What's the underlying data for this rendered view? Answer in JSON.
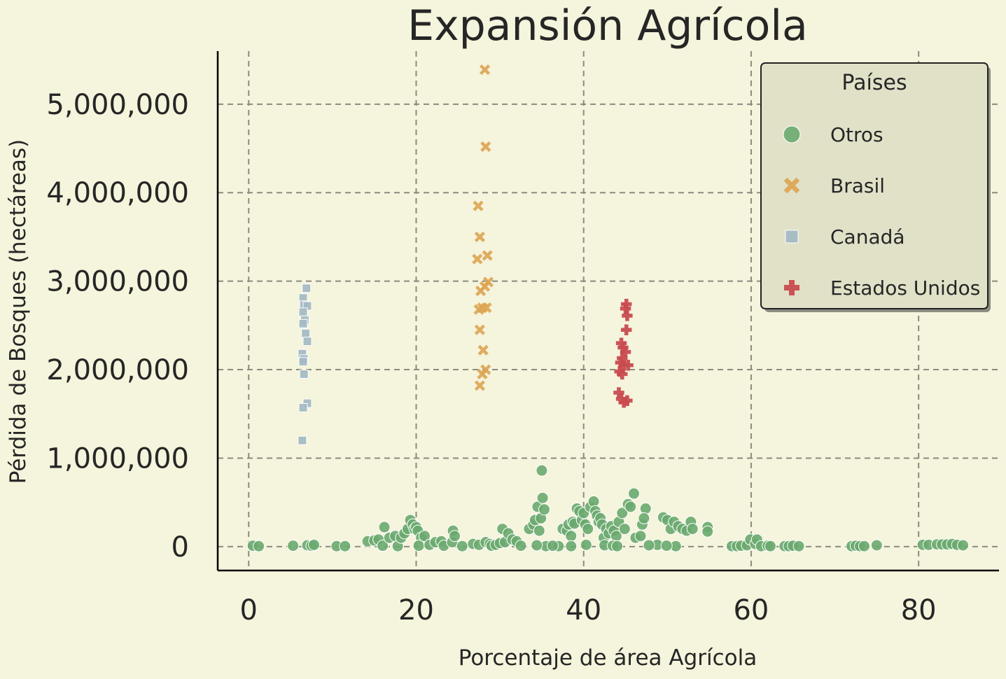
{
  "chart_data": {
    "type": "scatter",
    "title": "Expansión Agrícola",
    "xlabel": "Porcentaje de área Agrícola",
    "ylabel": "Pérdida de Bosques (hectáreas)",
    "xlim": [
      -3.7,
      89.6
    ],
    "ylim": [
      -270000,
      5600000
    ],
    "xticks": [
      0,
      20,
      40,
      60,
      80
    ],
    "xtick_labels": [
      "0",
      "20",
      "40",
      "60",
      "80"
    ],
    "yticks": [
      0,
      1000000,
      2000000,
      3000000,
      4000000,
      5000000
    ],
    "ytick_labels": [
      "0",
      "1,000,000",
      "2,000,000",
      "3,000,000",
      "4,000,000",
      "5,000,000"
    ],
    "grid": true,
    "legend": {
      "title": "Países",
      "position": "top-right"
    },
    "series": [
      {
        "name": "Otros",
        "marker": "circle",
        "color": "#6aaa6e",
        "points": [
          [
            0.5,
            10000
          ],
          [
            1.2,
            5000
          ],
          [
            5.3,
            10000
          ],
          [
            7.0,
            15000
          ],
          [
            7.5,
            10000
          ],
          [
            7.8,
            20000
          ],
          [
            10.5,
            5000
          ],
          [
            11.5,
            5000
          ],
          [
            14.2,
            60000
          ],
          [
            15.0,
            70000
          ],
          [
            15.5,
            80000
          ],
          [
            16.2,
            220000
          ],
          [
            16.0,
            10000
          ],
          [
            16.8,
            100000
          ],
          [
            17.5,
            120000
          ],
          [
            17.8,
            5000
          ],
          [
            18.2,
            100000
          ],
          [
            18.6,
            150000
          ],
          [
            19.0,
            200000
          ],
          [
            19.3,
            300000
          ],
          [
            19.6,
            250000
          ],
          [
            19.8,
            200000
          ],
          [
            20.0,
            220000
          ],
          [
            20.2,
            180000
          ],
          [
            20.6,
            100000
          ],
          [
            21.0,
            120000
          ],
          [
            20.3,
            10000
          ],
          [
            21.6,
            20000
          ],
          [
            22.3,
            50000
          ],
          [
            23.0,
            60000
          ],
          [
            23.3,
            10000
          ],
          [
            24.3,
            50000
          ],
          [
            24.4,
            180000
          ],
          [
            24.6,
            120000
          ],
          [
            25.5,
            5000
          ],
          [
            26.8,
            30000
          ],
          [
            27.5,
            20000
          ],
          [
            28.3,
            50000
          ],
          [
            28.8,
            30000
          ],
          [
            29.0,
            10000
          ],
          [
            29.5,
            20000
          ],
          [
            30.0,
            40000
          ],
          [
            30.3,
            200000
          ],
          [
            30.6,
            50000
          ],
          [
            31.0,
            150000
          ],
          [
            31.5,
            80000
          ],
          [
            32.0,
            60000
          ],
          [
            32.5,
            10000
          ],
          [
            33.5,
            200000
          ],
          [
            34.0,
            250000
          ],
          [
            34.2,
            300000
          ],
          [
            34.5,
            450000
          ],
          [
            34.7,
            180000
          ],
          [
            34.9,
            320000
          ],
          [
            35.0,
            860000
          ],
          [
            35.1,
            550000
          ],
          [
            35.3,
            420000
          ],
          [
            35.5,
            5000
          ],
          [
            34.4,
            15000
          ],
          [
            37.0,
            5000
          ],
          [
            37.5,
            200000
          ],
          [
            38.0,
            180000
          ],
          [
            38.2,
            250000
          ],
          [
            38.5,
            120000
          ],
          [
            38.7,
            280000
          ],
          [
            38.9,
            260000
          ],
          [
            39.2,
            430000
          ],
          [
            39.5,
            400000
          ],
          [
            39.8,
            300000
          ],
          [
            40.0,
            380000
          ],
          [
            40.2,
            250000
          ],
          [
            40.5,
            200000
          ],
          [
            40.8,
            450000
          ],
          [
            41.2,
            510000
          ],
          [
            41.4,
            400000
          ],
          [
            41.6,
            350000
          ],
          [
            41.8,
            280000
          ],
          [
            42.0,
            320000
          ],
          [
            42.2,
            250000
          ],
          [
            42.4,
            100000
          ],
          [
            42.7,
            200000
          ],
          [
            43.0,
            150000
          ],
          [
            43.3,
            230000
          ],
          [
            43.6,
            180000
          ],
          [
            43.9,
            120000
          ],
          [
            44.2,
            280000
          ],
          [
            44.6,
            380000
          ],
          [
            44.9,
            200000
          ],
          [
            45.3,
            480000
          ],
          [
            45.6,
            450000
          ],
          [
            46.0,
            600000
          ],
          [
            46.2,
            100000
          ],
          [
            46.8,
            120000
          ],
          [
            47.0,
            250000
          ],
          [
            47.4,
            430000
          ],
          [
            47.2,
            320000
          ],
          [
            48.8,
            20000
          ],
          [
            49.5,
            330000
          ],
          [
            50.0,
            300000
          ],
          [
            50.4,
            200000
          ],
          [
            50.8,
            280000
          ],
          [
            51.0,
            5000
          ],
          [
            51.3,
            230000
          ],
          [
            51.8,
            200000
          ],
          [
            52.3,
            180000
          ],
          [
            52.8,
            280000
          ],
          [
            53.0,
            200000
          ],
          [
            54.8,
            220000
          ],
          [
            54.8,
            170000
          ],
          [
            42.5,
            15000
          ],
          [
            43.5,
            10000
          ],
          [
            44.0,
            5000
          ],
          [
            40.3,
            20000
          ],
          [
            38.5,
            5000
          ],
          [
            36.3,
            10000
          ],
          [
            47.8,
            15000
          ],
          [
            49.9,
            10000
          ],
          [
            57.7,
            5000
          ],
          [
            58.3,
            5000
          ],
          [
            58.8,
            10000
          ],
          [
            59.5,
            15000
          ],
          [
            59.9,
            80000
          ],
          [
            60.5,
            30000
          ],
          [
            60.7,
            80000
          ],
          [
            61.2,
            5000
          ],
          [
            62.0,
            10000
          ],
          [
            62.3,
            5000
          ],
          [
            64.0,
            5000
          ],
          [
            64.5,
            5000
          ],
          [
            65.0,
            10000
          ],
          [
            65.7,
            5000
          ],
          [
            72.0,
            5000
          ],
          [
            72.5,
            10000
          ],
          [
            73.0,
            5000
          ],
          [
            73.5,
            5000
          ],
          [
            75.0,
            15000
          ],
          [
            80.5,
            20000
          ],
          [
            81.2,
            20000
          ],
          [
            82.2,
            25000
          ],
          [
            82.8,
            25000
          ],
          [
            83.4,
            25000
          ],
          [
            84.0,
            30000
          ],
          [
            84.6,
            20000
          ],
          [
            85.3,
            15000
          ]
        ]
      },
      {
        "name": "Brasil",
        "marker": "x",
        "color": "#dda451",
        "points": [
          [
            28.2,
            5390000
          ],
          [
            28.3,
            4520000
          ],
          [
            27.4,
            3850000
          ],
          [
            27.6,
            3500000
          ],
          [
            27.3,
            3250000
          ],
          [
            28.5,
            3290000
          ],
          [
            28.6,
            2990000
          ],
          [
            28.2,
            2940000
          ],
          [
            27.7,
            2890000
          ],
          [
            27.5,
            2680000
          ],
          [
            27.9,
            2700000
          ],
          [
            28.4,
            2700000
          ],
          [
            27.6,
            2450000
          ],
          [
            28.0,
            2220000
          ],
          [
            27.9,
            1950000
          ],
          [
            27.6,
            1820000
          ],
          [
            28.3,
            2000000
          ]
        ]
      },
      {
        "name": "Canadá",
        "marker": "square",
        "color": "#a2b8c2",
        "points": [
          [
            6.5,
            2810000
          ],
          [
            6.9,
            2920000
          ],
          [
            6.6,
            2730000
          ],
          [
            7.0,
            2720000
          ],
          [
            6.5,
            2650000
          ],
          [
            6.7,
            2560000
          ],
          [
            6.5,
            2520000
          ],
          [
            6.8,
            2410000
          ],
          [
            7.0,
            2320000
          ],
          [
            6.4,
            2180000
          ],
          [
            6.6,
            2120000
          ],
          [
            6.5,
            2090000
          ],
          [
            6.6,
            1950000
          ],
          [
            7.0,
            1620000
          ],
          [
            6.5,
            1570000
          ],
          [
            6.4,
            1200000
          ]
        ]
      },
      {
        "name": "Estados Unidos",
        "marker": "plus",
        "color": "#c84b4f",
        "points": [
          [
            45.1,
            2740000
          ],
          [
            45.0,
            2690000
          ],
          [
            45.2,
            2610000
          ],
          [
            45.1,
            2450000
          ],
          [
            44.5,
            2300000
          ],
          [
            44.7,
            2250000
          ],
          [
            45.0,
            2200000
          ],
          [
            44.6,
            2130000
          ],
          [
            44.4,
            2080000
          ],
          [
            44.8,
            2050000
          ],
          [
            45.3,
            2050000
          ],
          [
            44.3,
            1980000
          ],
          [
            44.6,
            1950000
          ],
          [
            44.2,
            1740000
          ],
          [
            44.5,
            1670000
          ],
          [
            45.2,
            1650000
          ],
          [
            44.8,
            1630000
          ]
        ]
      }
    ]
  }
}
